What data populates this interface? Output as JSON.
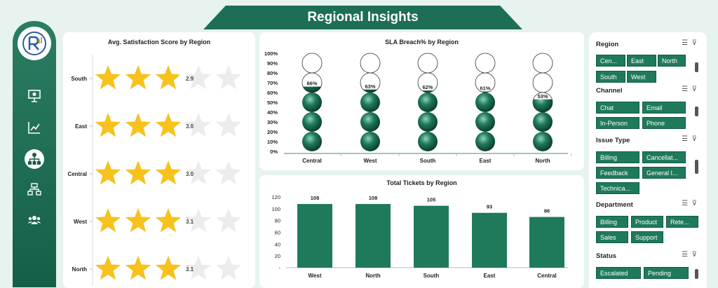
{
  "page_title": "Regional Insights",
  "colors": {
    "primary": "#1f7a5c",
    "dark": "#155f48",
    "star": "#f7c21b"
  },
  "chart_data": [
    {
      "type": "rating",
      "title": "Avg. Satisfaction Score by Region",
      "categories": [
        "South",
        "East",
        "Central",
        "West",
        "North"
      ],
      "values": [
        2.9,
        3.0,
        3.0,
        3.1,
        3.1
      ],
      "max": 5
    },
    {
      "type": "pictograph",
      "title": "SLA Breach% by Region",
      "categories": [
        "Central",
        "West",
        "South",
        "East",
        "North"
      ],
      "values": [
        66,
        63,
        62,
        61,
        53
      ],
      "labels": [
        "66%",
        "63%",
        "62%",
        "61%",
        "53%"
      ],
      "y_ticks": [
        "100%",
        "90%",
        "80%",
        "70%",
        "60%",
        "50%",
        "40%",
        "30%",
        "20%",
        "10%",
        "0%"
      ],
      "ylim": [
        0,
        100
      ]
    },
    {
      "type": "bar",
      "title": "Total Tickets by Region",
      "categories": [
        "West",
        "North",
        "South",
        "East",
        "Central"
      ],
      "values": [
        108,
        108,
        105,
        93,
        86
      ],
      "y_ticks": [
        "120",
        "100",
        "80",
        "60",
        "40",
        "20",
        "-"
      ],
      "ylim": [
        0,
        120
      ]
    }
  ],
  "filters": [
    {
      "title": "Region",
      "items": [
        "Cen...",
        "East",
        "North",
        "South",
        "West"
      ]
    },
    {
      "title": "Channel",
      "items": [
        "Chat",
        "Email",
        "In-Person",
        "Phone"
      ]
    },
    {
      "title": "Issue Type",
      "items": [
        "Billing",
        "Cancellat...",
        "Feedback",
        "General I...",
        "Technica..."
      ]
    },
    {
      "title": "Department",
      "items": [
        "Billing",
        "Product",
        "Rete...",
        "Sales",
        "Support"
      ]
    },
    {
      "title": "Status",
      "items": [
        "Escalated",
        "Pending"
      ]
    }
  ]
}
